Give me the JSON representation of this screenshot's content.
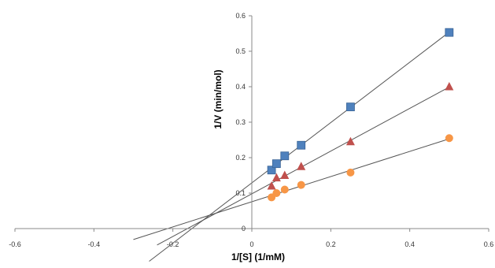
{
  "chart_data": {
    "type": "scatter",
    "title": "",
    "xlabel": "1/[S] (1/mM)",
    "ylabel": "1/V (min/mol)",
    "xlim": [
      -0.6,
      0.6
    ],
    "ylim": [
      0,
      0.6
    ],
    "x_ticks": [
      "-0.6",
      "-0.4",
      "-0.2",
      "0",
      "0.2",
      "0.4",
      "0.6"
    ],
    "y_ticks": [
      "0",
      "0.1",
      "0.2",
      "0.3",
      "0.4",
      "0.5",
      "0.6"
    ],
    "grid": false,
    "legend": "none",
    "series": [
      {
        "marker": "square",
        "color": "#4F81BD",
        "x": [
          0.05,
          0.0625,
          0.0833,
          0.125,
          0.25,
          0.5
        ],
        "y": [
          0.165,
          0.183,
          0.205,
          0.235,
          0.343,
          0.553
        ],
        "trendline_x": [
          -0.26,
          0.5
        ]
      },
      {
        "marker": "triangle",
        "color": "#C0504D",
        "x": [
          0.05,
          0.0625,
          0.0833,
          0.125,
          0.25,
          0.5
        ],
        "y": [
          0.12,
          0.143,
          0.15,
          0.175,
          0.245,
          0.4
        ],
        "trendline_x": [
          -0.24,
          0.5
        ]
      },
      {
        "marker": "circle",
        "color": "#F79646",
        "x": [
          0.05,
          0.0625,
          0.0833,
          0.125,
          0.25,
          0.5
        ],
        "y": [
          0.088,
          0.1,
          0.11,
          0.123,
          0.158,
          0.255
        ],
        "trendline_x": [
          -0.3,
          0.5
        ]
      }
    ]
  }
}
